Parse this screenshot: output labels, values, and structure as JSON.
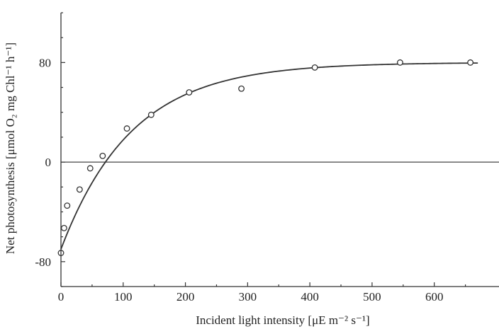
{
  "chart_data": {
    "type": "scatter",
    "xlabel": "Incident light intensity [μE m⁻² s⁻¹]",
    "ylabel": "Net photosynthesis [μmol O₂ mg Chl⁻¹ h⁻¹]",
    "xlim": [
      0,
      704
    ],
    "ylim": [
      -100,
      120
    ],
    "x_ticks": [
      0,
      100,
      200,
      300,
      400,
      500,
      600
    ],
    "y_ticks": [
      -80,
      0,
      80
    ],
    "x_tick_labels": [
      "0",
      "100",
      "200",
      "300",
      "400",
      "500",
      "600"
    ],
    "y_tick_labels": [
      "-80",
      "0",
      "80"
    ],
    "zero_line": true,
    "grid": false,
    "series": [
      {
        "points": [
          {
            "x": 0,
            "y": -73
          },
          {
            "x": 5,
            "y": -53
          },
          {
            "x": 10,
            "y": -35
          },
          {
            "x": 30,
            "y": -22
          },
          {
            "x": 47,
            "y": -5
          },
          {
            "x": 67,
            "y": 5
          },
          {
            "x": 106,
            "y": 27
          },
          {
            "x": 145,
            "y": 38
          },
          {
            "x": 206,
            "y": 56
          },
          {
            "x": 290,
            "y": 59
          },
          {
            "x": 408,
            "y": 76
          },
          {
            "x": 545,
            "y": 80
          },
          {
            "x": 658,
            "y": 80
          }
        ]
      }
    ],
    "fit_curve": {
      "model": "exponential saturation",
      "x_range": [
        0,
        670
      ],
      "y_max": 80,
      "y_at_zero": -70,
      "rate": 0.0088
    },
    "colors": {
      "axis": "#333333",
      "curve": "#333333",
      "marker_fill": "#ffffff"
    }
  }
}
